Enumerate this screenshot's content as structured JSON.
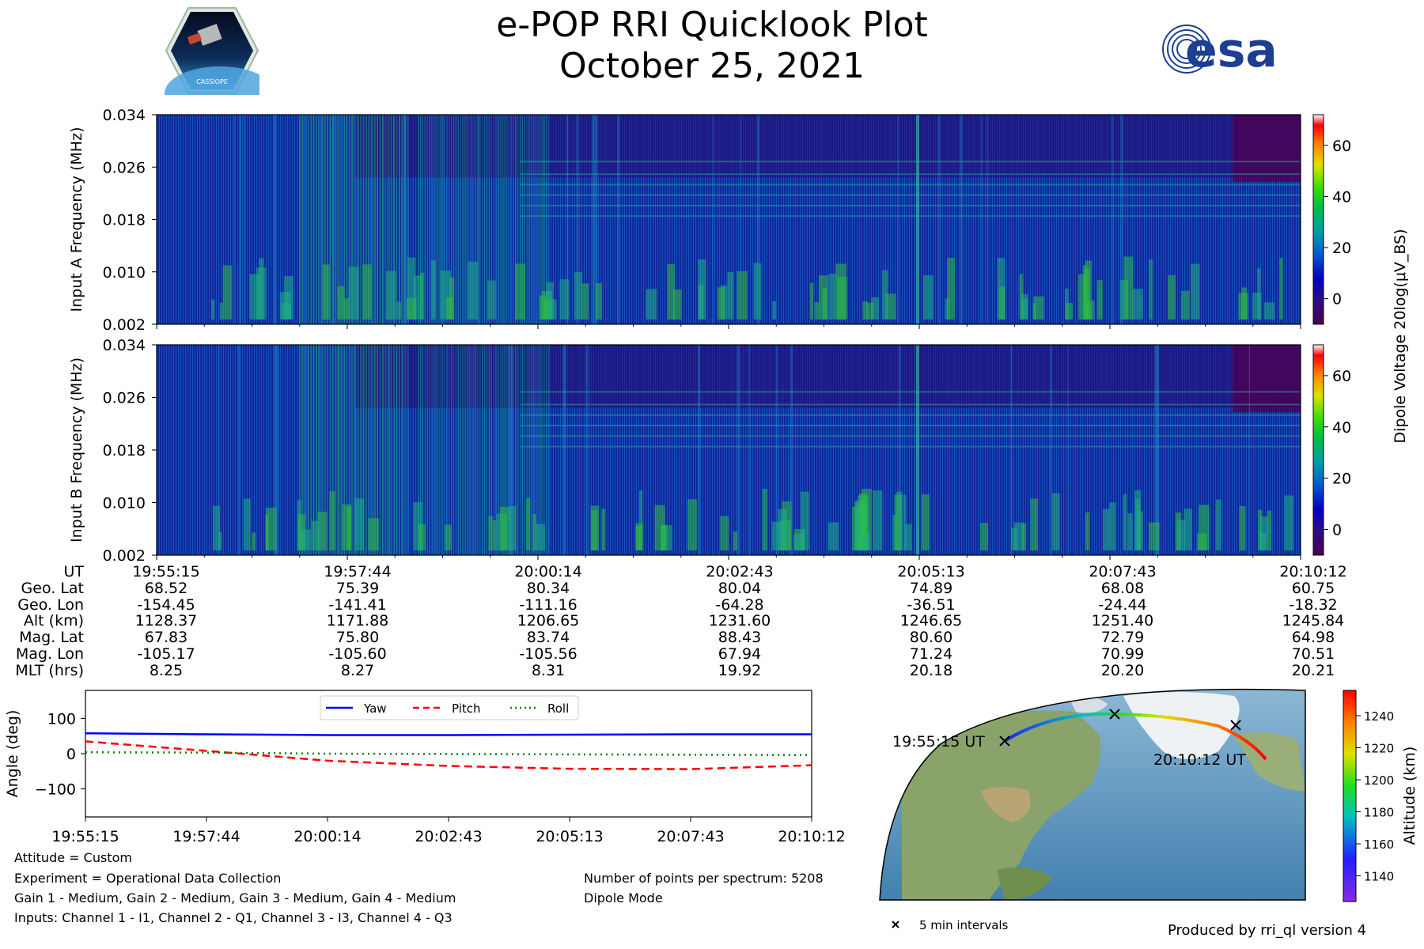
{
  "title": "e-POP RRI Quicklook Plot",
  "subtitle": "October 25, 2021",
  "logos": {
    "left_text": "CASSIOPE",
    "right_text": "esa"
  },
  "chart_data": [
    {
      "type": "heatmap",
      "name": "spectrogram-a",
      "ylabel": "Input A Frequency (MHz)",
      "yticks": [
        "0.002",
        "0.010",
        "0.018",
        "0.026",
        "0.034"
      ],
      "ylim": [
        0.002,
        0.034
      ],
      "x_time_range": [
        "19:55:15",
        "20:10:12"
      ]
    },
    {
      "type": "heatmap",
      "name": "spectrogram-b",
      "ylabel": "Input B Frequency (MHz)",
      "yticks": [
        "0.002",
        "0.010",
        "0.018",
        "0.026",
        "0.034"
      ],
      "ylim": [
        0.002,
        0.034
      ],
      "x_time_range": [
        "19:55:15",
        "20:10:12"
      ]
    },
    {
      "type": "colorbar",
      "name": "dipole-voltage-colorbar",
      "label": "Dipole Voltage 20log(μV_BS)",
      "ticks": [
        "0",
        "20",
        "40",
        "60"
      ],
      "range": [
        -10,
        72
      ]
    },
    {
      "type": "table",
      "name": "orbit-table",
      "row_labels": [
        "UT",
        "Geo. Lat",
        "Geo. Lon",
        "Alt (km)",
        "Mag. Lat",
        "Mag. Lon",
        "MLT (hrs)"
      ],
      "columns": [
        [
          "19:55:15",
          "68.52",
          "-154.45",
          "1128.37",
          "67.83",
          "-105.17",
          "8.25"
        ],
        [
          "19:57:44",
          "75.39",
          "-141.41",
          "1171.88",
          "75.80",
          "-105.60",
          "8.27"
        ],
        [
          "20:00:14",
          "80.34",
          "-111.16",
          "1206.65",
          "83.74",
          "-105.56",
          "8.31"
        ],
        [
          "20:02:43",
          "80.04",
          "-64.28",
          "1231.60",
          "88.43",
          "67.94",
          "19.92"
        ],
        [
          "20:05:13",
          "74.89",
          "-36.51",
          "1246.65",
          "80.60",
          "71.24",
          "20.18"
        ],
        [
          "20:07:43",
          "68.08",
          "-24.44",
          "1251.40",
          "72.79",
          "70.99",
          "20.20"
        ],
        [
          "20:10:12",
          "60.75",
          "-18.32",
          "1245.84",
          "64.98",
          "70.51",
          "20.21"
        ]
      ]
    },
    {
      "type": "line",
      "name": "attitude-plot",
      "ylabel": "Angle (deg)",
      "ylim": [
        -180,
        180
      ],
      "yticks": [
        "100",
        "0",
        "−100"
      ],
      "x_tick_labels": [
        "19:55:15",
        "19:57:44",
        "20:00:14",
        "20:02:43",
        "20:05:13",
        "20:07:43",
        "20:10:12"
      ],
      "x": [
        0,
        1,
        2,
        3,
        4,
        5,
        6
      ],
      "series": [
        {
          "name": "Yaw",
          "color": "#0000ff",
          "style": "solid",
          "values": [
            58,
            55,
            53,
            53,
            54,
            55,
            55
          ]
        },
        {
          "name": "Pitch",
          "color": "#ff0000",
          "style": "dashed",
          "values": [
            35,
            8,
            -20,
            -35,
            -43,
            -44,
            -33
          ]
        },
        {
          "name": "Roll",
          "color": "#008000",
          "style": "dotted",
          "values": [
            4,
            3,
            0,
            -1,
            -2,
            -3,
            -4
          ]
        }
      ]
    },
    {
      "type": "map",
      "name": "orbit-map",
      "start_label": "19:55:15 UT",
      "end_label": "20:10:12 UT",
      "marker_legend": "5 min intervals",
      "colorbar_label": "Altitude (km)",
      "colorbar_ticks": [
        "1240",
        "1220",
        "1200",
        "1180",
        "1160",
        "1140"
      ]
    }
  ],
  "footer": {
    "attitude": "Attitude = Custom",
    "experiment": "Experiment = Operational Data Collection",
    "gains": "Gain 1 - Medium, Gain 2 - Medium, Gain 3 - Medium, Gain 4 - Medium",
    "inputs": "Inputs: Channel 1 - I1, Channel 2 - Q1, Channel 3 - I3, Channel 4 - Q3",
    "points": "Number of points per spectrum: 5208",
    "mode": "Dipole Mode",
    "produced": "Produced by rri_ql version 4"
  }
}
